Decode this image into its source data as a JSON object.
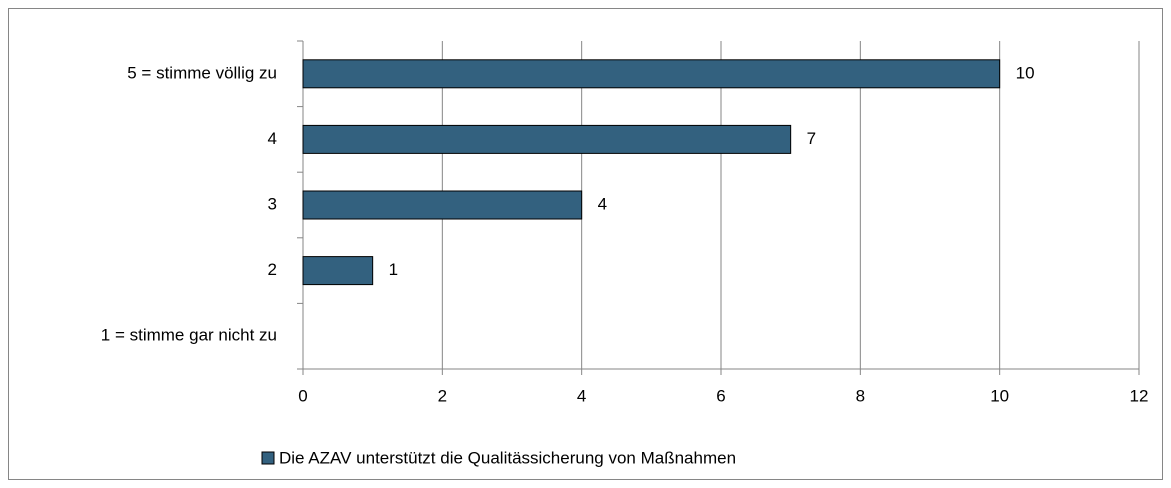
{
  "chart_data": {
    "type": "barh",
    "categories": [
      "5 = stimme völlig zu",
      "4",
      "3",
      "2",
      "1 = stimme gar nicht zu"
    ],
    "series": [
      {
        "name": "Die AZAV unterstützt die Qualitässicherung von Maßnahmen",
        "color": "#33617f",
        "values": [
          10,
          7,
          4,
          1,
          null
        ]
      }
    ],
    "xlim": [
      0,
      12
    ],
    "xticks": [
      0,
      2,
      4,
      6,
      8,
      10,
      12
    ],
    "grid": true,
    "data_labels": true,
    "legend": "bottom"
  }
}
